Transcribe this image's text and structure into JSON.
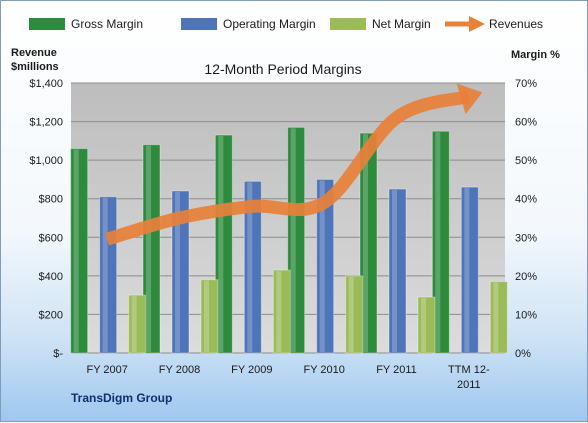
{
  "chart_data": {
    "type": "bar",
    "title": "12-Month Period Margins",
    "categories": [
      [
        "FY 2007"
      ],
      [
        "FY 2008"
      ],
      [
        "FY 2009"
      ],
      [
        "FY 2010"
      ],
      [
        "FY 2011"
      ],
      [
        "TTM 12-",
        "2011"
      ]
    ],
    "left_axis": {
      "label_lines": [
        "Revenue",
        "$millions"
      ],
      "ylim": [
        0,
        1400
      ],
      "tick_labels": [
        "$-",
        "$200",
        "$400",
        "$600",
        "$800",
        "$1,000",
        "$1,200",
        "$1,400"
      ]
    },
    "right_axis": {
      "label": "Margin %",
      "ylim": [
        0,
        70
      ],
      "tick_labels": [
        "0%",
        "10%",
        "20%",
        "30%",
        "40%",
        "50%",
        "60%",
        "70%"
      ]
    },
    "series": [
      {
        "name": "Gross Margin",
        "axis": "right",
        "kind": "bar",
        "color": "#2e8b3e",
        "values": [
          53,
          54,
          56.5,
          58.5,
          57,
          57.5
        ]
      },
      {
        "name": "Operating Margin",
        "axis": "right",
        "kind": "bar",
        "color": "#4f74b8",
        "values": [
          40.5,
          42,
          44.5,
          45,
          42.5,
          43
        ]
      },
      {
        "name": "Net Margin",
        "axis": "right",
        "kind": "bar",
        "color": "#9bbb59",
        "values": [
          15,
          19,
          21.5,
          20,
          14.5,
          18.5
        ]
      },
      {
        "name": "Revenues",
        "axis": "left",
        "kind": "line",
        "color": "#e8803a",
        "values": [
          590,
          700,
          760,
          780,
          1220,
          1330
        ]
      }
    ],
    "grid": true,
    "legend_position": "top",
    "source": "TransDigm Group"
  }
}
